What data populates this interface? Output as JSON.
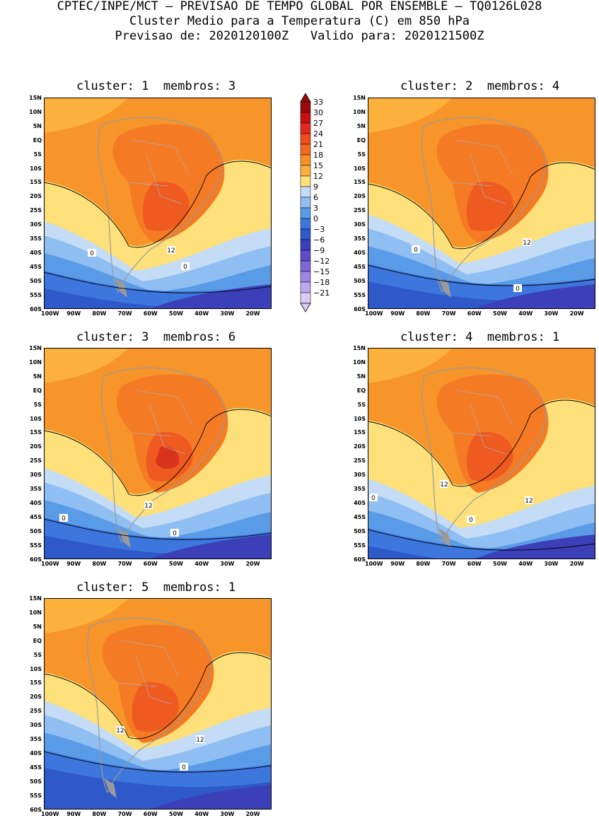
{
  "header": {
    "line1": "CPTEC/INPE/MCT – PREVISAO DE TEMPO GLOBAL POR ENSEMBLE – TQ0126L028",
    "line2": "Cluster Medio para a Temperatura (C) em 850 hPa",
    "line3": "Previsao de: 2020120100Z   Valido para: 2020121500Z"
  },
  "panels": [
    {
      "title": "cluster: 1  membros: 3"
    },
    {
      "title": "cluster: 2  membros: 4"
    },
    {
      "title": "cluster: 3  membros: 6"
    },
    {
      "title": "cluster: 4  membros: 1"
    },
    {
      "title": "cluster: 5  membros: 1"
    }
  ],
  "lat_labels": [
    "15N",
    "10N",
    "5N",
    "EQ",
    "5S",
    "10S",
    "15S",
    "20S",
    "25S",
    "30S",
    "35S",
    "40S",
    "45S",
    "50S",
    "55S",
    "60S"
  ],
  "lon_labels": [
    "100W",
    "90W",
    "80W",
    "70W",
    "60W",
    "50W",
    "40W",
    "30W",
    "20W"
  ],
  "colorbar": {
    "labels": [
      "33",
      "30",
      "27",
      "24",
      "21",
      "18",
      "15",
      "12",
      "9",
      "6",
      "3",
      "0",
      "−3",
      "−6",
      "−9",
      "−12",
      "−15",
      "−18",
      "−21"
    ],
    "colors": [
      "#9a0a0a",
      "#c81010",
      "#e8271e",
      "#f04a1e",
      "#f36a22",
      "#f7902a",
      "#fbb13c",
      "#fde07a",
      "#c4dcf6",
      "#8fbef2",
      "#5a9be8",
      "#3d76dc",
      "#2f59c9",
      "#3b3fb8",
      "#5c4cc6",
      "#7d67d6",
      "#9c87e2",
      "#bba9ec",
      "#d8cbf4"
    ]
  },
  "contour_labels": {
    "p1": [
      "12",
      "0",
      "0"
    ],
    "p2": [
      "0",
      "12",
      "0"
    ],
    "p3": [
      "12",
      "0",
      "0"
    ],
    "p4": [
      "12",
      "12",
      "0",
      "0"
    ],
    "p5": [
      "12",
      "12",
      "0"
    ]
  }
}
